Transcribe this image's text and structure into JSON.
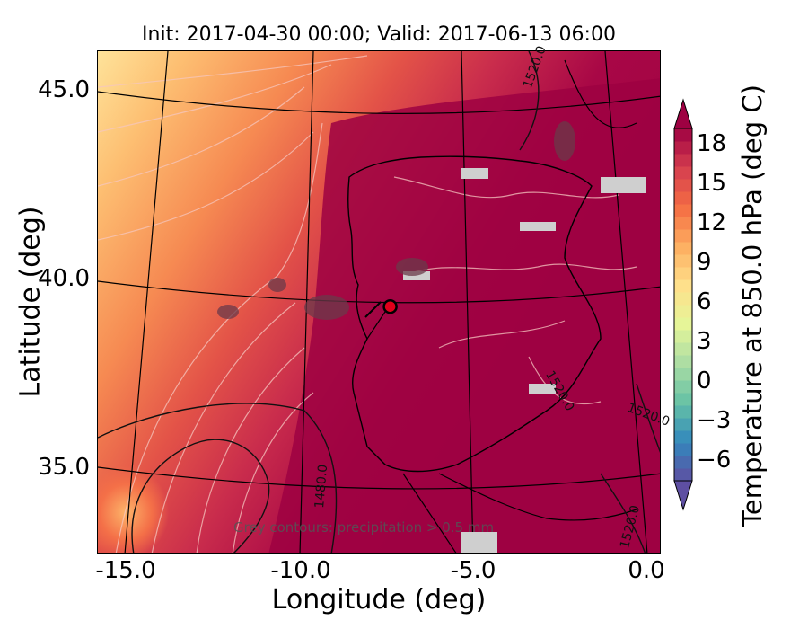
{
  "chart_data": {
    "type": "heatmap",
    "title": "Init: 2017-04-30 00:00; Valid: 2017-06-13 06:00",
    "xlabel": "Longitude (deg)",
    "ylabel": "Latitude (deg)",
    "x_ticks": [
      "-15.0",
      "-10.0",
      "-5.0",
      "0.0"
    ],
    "y_ticks": [
      "45.0",
      "40.0",
      "35.0"
    ],
    "xlim": [
      -16,
      0.2
    ],
    "ylim": [
      32.7,
      46.1
    ],
    "colorbar": {
      "label": "Temperature at 850.0 hPa (deg C)",
      "ticks": [
        "18",
        "15",
        "12",
        "9",
        "6",
        "3",
        "0",
        "−3",
        "−6"
      ],
      "range": [
        -8,
        20
      ],
      "extend": "both",
      "colormap": [
        "#5e4fa2",
        "#3288bd",
        "#66c2a5",
        "#abdda4",
        "#e6f598",
        "#fee08b",
        "#fdae61",
        "#f46d43",
        "#d53e4f",
        "#9e0142"
      ]
    },
    "annotation": "Grey contours: precipitation > 0.5 mm",
    "contour_labels": [
      "1520.0",
      "1520.0",
      "1520.0",
      "1480.0",
      "1520.0"
    ],
    "marker": {
      "lon": -7.6,
      "lat": 39.3,
      "color": "#e0001a"
    }
  }
}
